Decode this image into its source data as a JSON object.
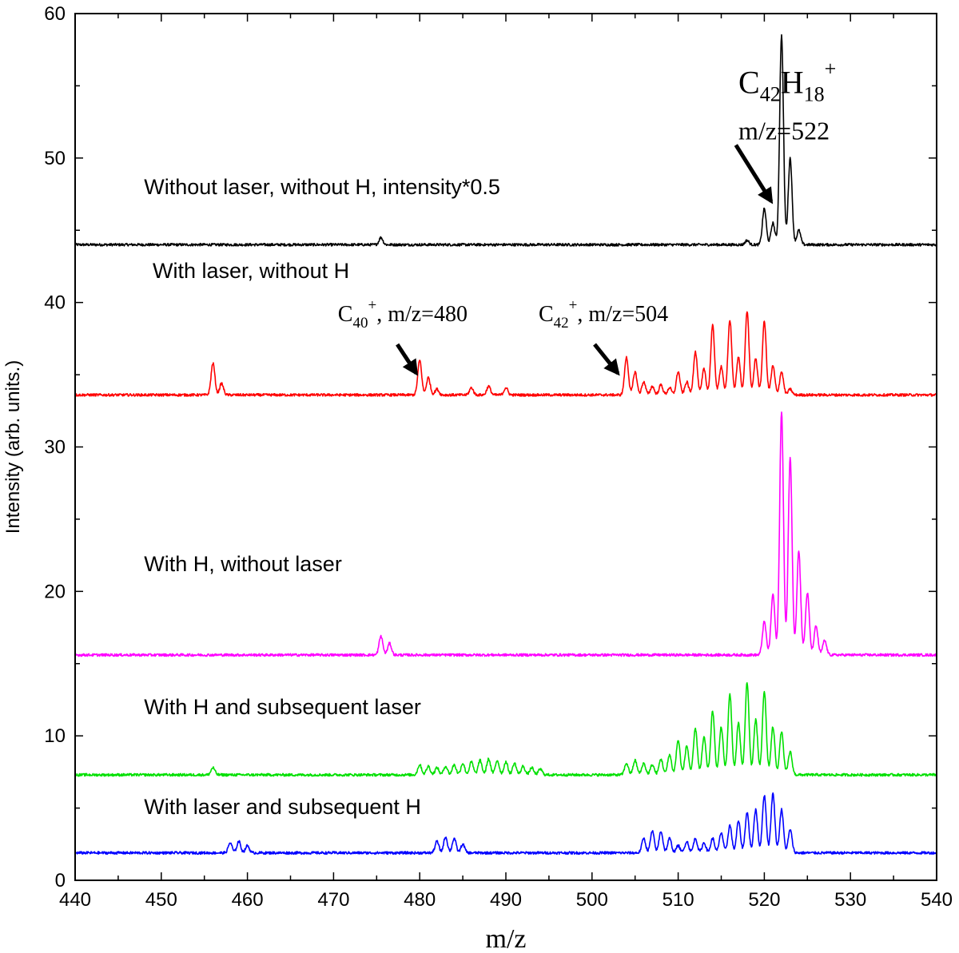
{
  "chart_data": {
    "type": "line",
    "xlabel": "m/z",
    "ylabel": "Intensity (arb. units.)",
    "xlim": [
      440,
      540
    ],
    "ylim": [
      0,
      60
    ],
    "xticks": [
      440,
      450,
      460,
      470,
      480,
      490,
      500,
      510,
      520,
      530,
      540
    ],
    "yticks": [
      0,
      10,
      20,
      30,
      40,
      50,
      60
    ],
    "grid": false,
    "series": [
      {
        "name": "Without laser, without H, intensity*0.5",
        "color": "#000000",
        "baseline": 44.0,
        "peaks": [
          [
            475.5,
            0.5
          ],
          [
            518,
            0.3
          ],
          [
            520,
            2.5
          ],
          [
            521,
            1.5
          ],
          [
            522,
            14.5
          ],
          [
            523,
            6
          ],
          [
            524,
            1
          ]
        ]
      },
      {
        "name": "With laser, without H",
        "color": "#ff0000",
        "baseline": 33.6,
        "peaks": [
          [
            456,
            2.2
          ],
          [
            457,
            0.8
          ],
          [
            480,
            2.4
          ],
          [
            481,
            1.2
          ],
          [
            482,
            0.4
          ],
          [
            486,
            0.5
          ],
          [
            488,
            0.6
          ],
          [
            490,
            0.5
          ],
          [
            504,
            2.6
          ],
          [
            505,
            1.6
          ],
          [
            506,
            0.9
          ],
          [
            507,
            0.6
          ],
          [
            508,
            0.7
          ],
          [
            509,
            0.5
          ],
          [
            510,
            1.6
          ],
          [
            511,
            0.9
          ],
          [
            512,
            3.0
          ],
          [
            513,
            1.8
          ],
          [
            514,
            4.8
          ],
          [
            515,
            2.0
          ],
          [
            516,
            5.2
          ],
          [
            517,
            2.6
          ],
          [
            518,
            5.8
          ],
          [
            519,
            2.5
          ],
          [
            520,
            5.1
          ],
          [
            521,
            2.0
          ],
          [
            522,
            1.6
          ],
          [
            523,
            0.4
          ]
        ]
      },
      {
        "name": "With H, without laser",
        "color": "#ff00ff",
        "baseline": 15.6,
        "peaks": [
          [
            475.5,
            1.3
          ],
          [
            476.5,
            0.8
          ],
          [
            520,
            2.3
          ],
          [
            521,
            4.2
          ],
          [
            522,
            16.8
          ],
          [
            523,
            13.7
          ],
          [
            524,
            7.2
          ],
          [
            525,
            4.3
          ],
          [
            526,
            2.0
          ],
          [
            527,
            1.0
          ]
        ]
      },
      {
        "name": "With H and subsequent laser",
        "color": "#00e000",
        "baseline": 7.3,
        "peaks": [
          [
            456,
            0.5
          ],
          [
            480,
            0.7
          ],
          [
            481,
            0.6
          ],
          [
            482,
            0.5
          ],
          [
            483,
            0.6
          ],
          [
            484,
            0.7
          ],
          [
            485,
            0.8
          ],
          [
            486,
            0.9
          ],
          [
            487,
            1.0
          ],
          [
            488,
            1.1
          ],
          [
            489,
            1.0
          ],
          [
            490,
            0.9
          ],
          [
            491,
            0.8
          ],
          [
            492,
            0.6
          ],
          [
            493,
            0.5
          ],
          [
            494,
            0.4
          ],
          [
            504,
            0.8
          ],
          [
            505,
            1.0
          ],
          [
            506,
            0.8
          ],
          [
            507,
            0.7
          ],
          [
            508,
            1.1
          ],
          [
            509,
            1.4
          ],
          [
            510,
            2.4
          ],
          [
            511,
            2.0
          ],
          [
            512,
            3.2
          ],
          [
            513,
            2.6
          ],
          [
            514,
            4.4
          ],
          [
            515,
            3.3
          ],
          [
            516,
            5.6
          ],
          [
            517,
            3.6
          ],
          [
            518,
            6.4
          ],
          [
            519,
            3.8
          ],
          [
            520,
            5.8
          ],
          [
            521,
            3.3
          ],
          [
            522,
            3.0
          ],
          [
            523,
            1.6
          ]
        ]
      },
      {
        "name": "With laser and subsequent H",
        "color": "#0000ff",
        "baseline": 1.9,
        "peaks": [
          [
            458,
            0.7
          ],
          [
            459,
            0.8
          ],
          [
            460,
            0.5
          ],
          [
            482,
            0.8
          ],
          [
            483,
            1.1
          ],
          [
            484,
            1.0
          ],
          [
            485,
            0.6
          ],
          [
            506,
            1.0
          ],
          [
            507,
            1.5
          ],
          [
            508,
            1.5
          ],
          [
            509,
            1.0
          ],
          [
            510,
            0.5
          ],
          [
            511,
            0.8
          ],
          [
            512,
            1.0
          ],
          [
            513,
            0.7
          ],
          [
            514,
            1.0
          ],
          [
            515,
            1.4
          ],
          [
            516,
            1.9
          ],
          [
            517,
            2.2
          ],
          [
            518,
            2.8
          ],
          [
            519,
            3.0
          ],
          [
            520,
            4.0
          ],
          [
            521,
            4.1
          ],
          [
            522,
            3.0
          ],
          [
            523,
            1.6
          ]
        ]
      }
    ],
    "curve_labels": [
      {
        "text": "Without laser, without H, intensity*0.5",
        "x": 448,
        "y": 47.5
      },
      {
        "text": "With laser, without H",
        "x": 449,
        "y": 41.7
      },
      {
        "text": "With H, without laser",
        "x": 448,
        "y": 21.4
      },
      {
        "text": "With H and subsequent laser",
        "x": 448,
        "y": 11.5
      },
      {
        "text": "With laser and subsequent H",
        "x": 448,
        "y": 4.6
      }
    ],
    "annotations": [
      {
        "base": "C",
        "sub": "42",
        "mid": "H",
        "sub2": "18",
        "sup": "+",
        "line2": "m/z=522",
        "x": 517,
        "y": 54.5,
        "arrow_from": [
          516.7,
          50.9
        ],
        "arrow_to": [
          520.8,
          47.0
        ]
      },
      {
        "base": "C",
        "sub": "40",
        "sup": "+",
        "tail": ", m/z=480",
        "x": 470.5,
        "y": 38.7,
        "arrow_from": [
          477.4,
          37.1
        ],
        "arrow_to": [
          479.6,
          35.1
        ]
      },
      {
        "base": "C",
        "sub": "42",
        "sup": "+",
        "tail": ", m/z=504",
        "x": 493.8,
        "y": 38.7,
        "arrow_from": [
          500.3,
          37.1
        ],
        "arrow_to": [
          503.0,
          35.1
        ]
      }
    ]
  }
}
